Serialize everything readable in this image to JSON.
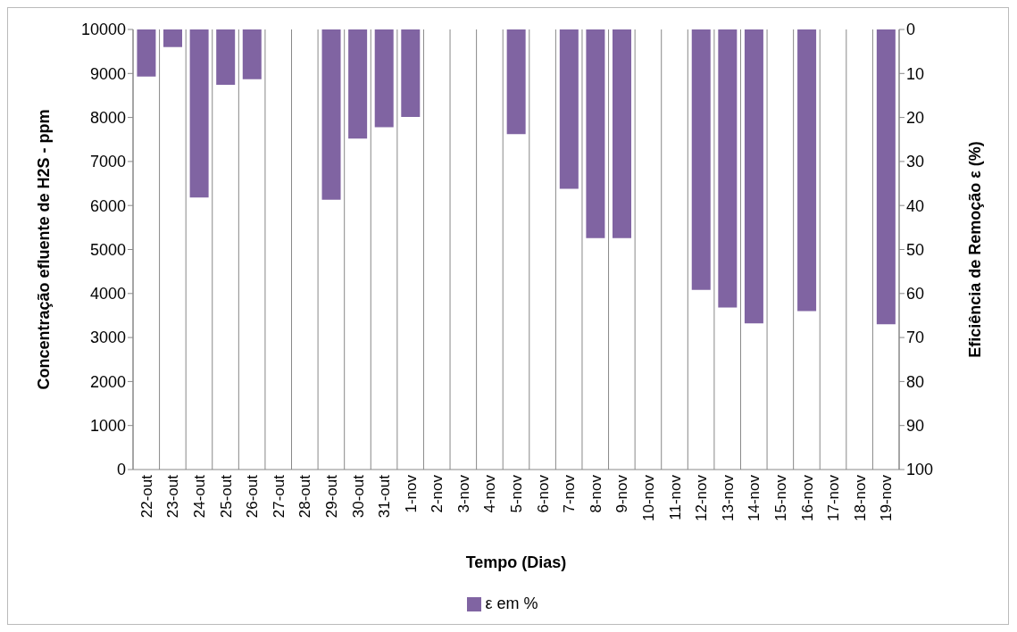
{
  "chart_data": {
    "type": "bar",
    "xlabel": "Tempo (Dias)",
    "ylabel": "Concentração efluente de H2S - ppm",
    "y2label": "Eficiência de Remoção ε (%)",
    "categories": [
      "22-out",
      "23-out",
      "24-out",
      "25-out",
      "26-out",
      "27-out",
      "28-out",
      "29-out",
      "30-out",
      "31-out",
      "1-nov",
      "2-nov",
      "3-nov",
      "4-nov",
      "5-nov",
      "6-nov",
      "7-nov",
      "8-nov",
      "9-nov",
      "10-nov",
      "11-nov",
      "12-nov",
      "13-nov",
      "14-nov",
      "15-nov",
      "16-nov",
      "17-nov",
      "18-nov",
      "19-nov"
    ],
    "series": [
      {
        "name": "ε em %",
        "color": "#8064a2",
        "axis": "y2",
        "values": [
          10.7,
          4,
          38.2,
          12.6,
          11.3,
          null,
          null,
          38.7,
          24.8,
          22.2,
          19.9,
          null,
          null,
          null,
          23.8,
          null,
          36.2,
          47.4,
          47.4,
          null,
          null,
          59.2,
          63.2,
          66.8,
          null,
          64,
          null,
          null,
          67
        ]
      }
    ],
    "ylim": [
      0,
      10000
    ],
    "yticks": [
      0,
      1000,
      2000,
      3000,
      4000,
      5000,
      6000,
      7000,
      8000,
      9000,
      10000
    ],
    "y2lim": [
      100,
      0
    ],
    "y2ticks": [
      0,
      10,
      20,
      30,
      40,
      50,
      60,
      70,
      80,
      90,
      100
    ],
    "grid": "x",
    "legend": "bottom"
  }
}
